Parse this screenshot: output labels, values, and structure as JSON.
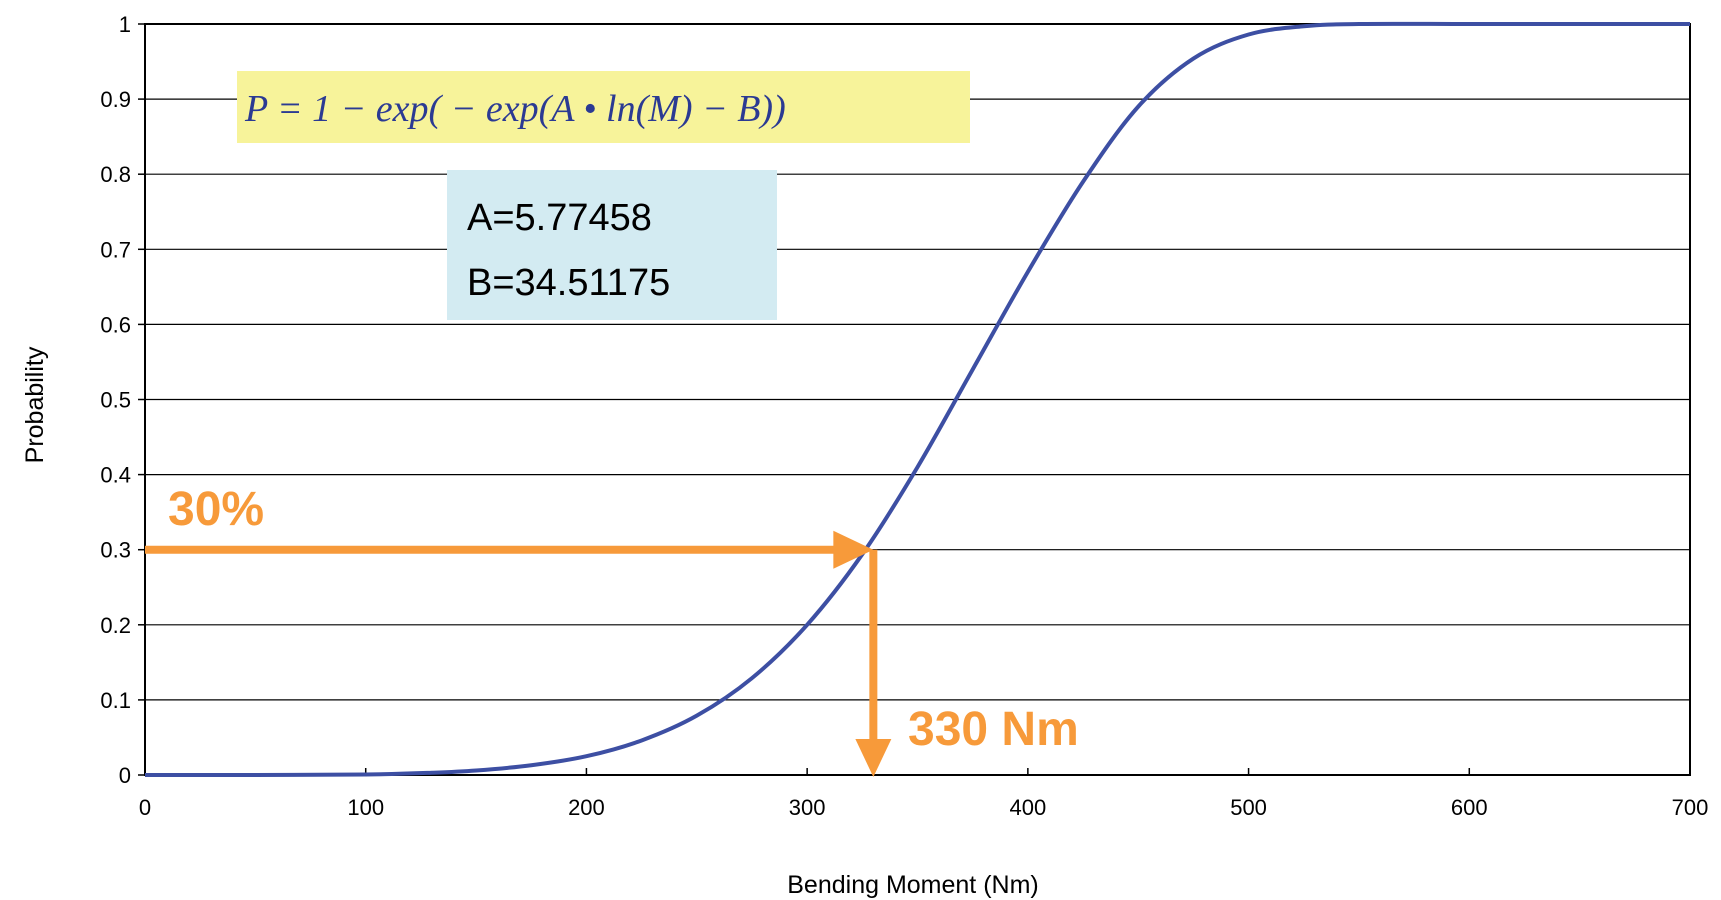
{
  "chart_data": {
    "type": "line",
    "xlabel": "Bending Moment (Nm)",
    "ylabel": "Probability",
    "xlim": [
      0,
      700
    ],
    "ylim": [
      0,
      1
    ],
    "xticks": [
      "0",
      "100",
      "200",
      "300",
      "400",
      "500",
      "600",
      "700"
    ],
    "yticks": [
      "0",
      "0.1",
      "0.2",
      "0.3",
      "0.4",
      "0.5",
      "0.6",
      "0.7",
      "0.8",
      "0.9",
      "1"
    ],
    "grid": "horizontal",
    "series": [
      {
        "x": [
          0,
          50,
          100,
          130,
          150,
          175,
          200,
          225,
          250,
          275,
          300,
          325,
          350,
          375,
          400,
          425,
          450,
          475,
          500,
          525,
          550,
          600,
          650,
          700
        ],
        "y": [
          0,
          0,
          0.0006,
          0.003,
          0.006,
          0.013,
          0.025,
          0.046,
          0.079,
          0.129,
          0.2,
          0.294,
          0.41,
          0.54,
          0.67,
          0.79,
          0.89,
          0.954,
          0.986,
          0.997,
          1,
          1,
          1,
          1
        ],
        "color": "#3D4FA3"
      }
    ],
    "annotations": {
      "formula": "P = 1 − exp( − exp(A • ln(M) − B))",
      "param_a": "A=5.77458",
      "param_b": "B=34.51175",
      "percent_label": "30%",
      "percent_value": 0.3,
      "moment_label": "330 Nm",
      "moment_value": 330
    },
    "colors": {
      "curve": "#3D4FA3",
      "arrow": "#F79A3A",
      "formula_box": "#F7F39A",
      "formula_text": "#2B3A93",
      "params_box": "#D3EBF2"
    }
  }
}
